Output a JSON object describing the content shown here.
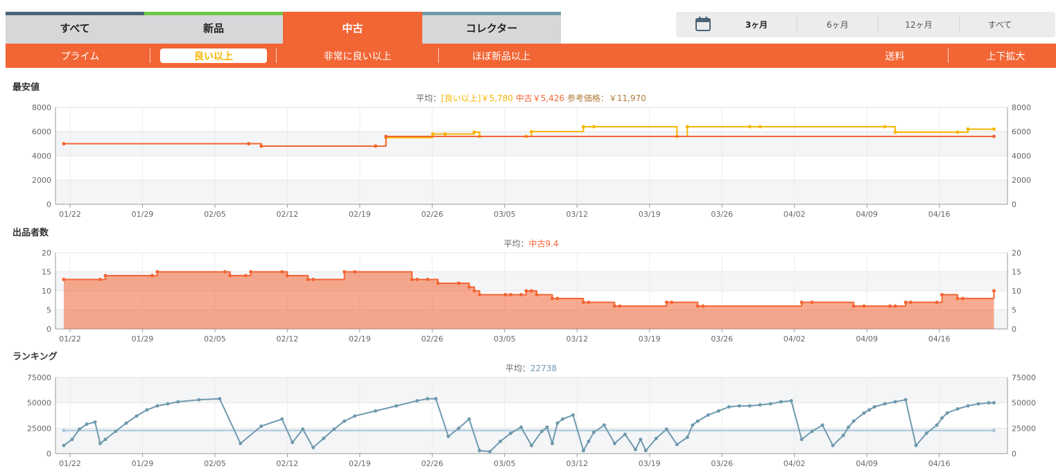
{
  "tabs": [
    {
      "label": "すべて",
      "stripe": "#4a6478",
      "active": false
    },
    {
      "label": "新品",
      "stripe": "#6dc84a",
      "active": false
    },
    {
      "label": "中古",
      "stripe": "#f26534",
      "active": true
    },
    {
      "label": "コレクター",
      "stripe": "#6d9bab",
      "active": false
    }
  ],
  "range": {
    "icon": "calendar-icon",
    "items": [
      {
        "label": "3ヶ月",
        "active": true
      },
      {
        "label": "6ヶ月",
        "active": false
      },
      {
        "label": "12ヶ月",
        "active": false
      },
      {
        "label": "すべて",
        "active": false
      }
    ]
  },
  "filters": {
    "items": [
      {
        "label": "プライム",
        "active": false
      },
      {
        "label": "良い以上",
        "active": true
      },
      {
        "label": "非常に良い以上",
        "active": false
      },
      {
        "label": "ほぼ新品以上",
        "active": false
      }
    ],
    "shipping_label": "送料",
    "zoom_label": "上下拡大"
  },
  "colors": {
    "accent": "#f26534",
    "good": "#f7b500",
    "rank": "#6e99ad",
    "rank_avg": "#a7c6da"
  },
  "chart_data": [
    {
      "type": "line",
      "title": "最安値",
      "subtitle": {
        "prefix": "平均：",
        "good_label": "[良い以上]￥5,780",
        "used_label": "中古￥5,426",
        "ref_label": "参考価格：￥11,970"
      },
      "x_ticks": [
        "01/22",
        "01/29",
        "02/05",
        "02/12",
        "02/19",
        "02/26",
        "03/05",
        "03/12",
        "03/19",
        "03/26",
        "04/02",
        "04/09",
        "04/16"
      ],
      "x_range": [
        0,
        90
      ],
      "ylim": [
        0,
        8000
      ],
      "y_ticks": [
        0,
        2000,
        4000,
        6000,
        8000
      ],
      "grid": true,
      "series": [
        {
          "name": "良い以上",
          "color": "#f7b500",
          "x": [
            0,
            17.8,
            19,
            30,
            31,
            35.5,
            36.7,
            39.5,
            40,
            44.5,
            45,
            50,
            51,
            59,
            60,
            66,
            67,
            79,
            80,
            86,
            87,
            89.5
          ],
          "y": [
            5000,
            5000,
            4800,
            4800,
            5500,
            5800,
            5800,
            5950,
            5600,
            5600,
            6000,
            6400,
            6400,
            5600,
            6400,
            6400,
            6400,
            6400,
            5950,
            5950,
            6200,
            6200
          ]
        },
        {
          "name": "中古",
          "color": "#f26534",
          "x": [
            0,
            17.8,
            19,
            30,
            31,
            89.5
          ],
          "y": [
            5000,
            5000,
            4800,
            4800,
            5600,
            5600
          ]
        }
      ]
    },
    {
      "type": "area",
      "title": "出品者数",
      "subtitle": {
        "prefix": "平均：",
        "used_label": "中古9.4"
      },
      "x_ticks": [
        "01/22",
        "01/29",
        "02/05",
        "02/12",
        "02/19",
        "02/26",
        "03/05",
        "03/12",
        "03/19",
        "03/26",
        "04/02",
        "04/09",
        "04/16"
      ],
      "x_range": [
        0,
        90
      ],
      "ylim": [
        0,
        20
      ],
      "y_ticks": [
        0,
        5,
        10,
        15,
        20
      ],
      "grid": true,
      "series": [
        {
          "name": "中古",
          "color": "#f26534",
          "x": [
            0,
            3.5,
            4,
            8.5,
            9,
            15.5,
            16,
            17.5,
            18,
            21,
            21.5,
            23.5,
            24,
            27,
            28,
            33.5,
            34,
            35,
            36,
            38,
            39,
            39.5,
            40,
            42.5,
            43,
            44,
            44.5,
            45,
            45.5,
            47,
            47.5,
            50,
            50.5,
            53,
            53.5,
            58,
            58.5,
            61,
            61.5,
            71,
            72,
            76,
            77,
            79.5,
            80,
            81,
            81.5,
            84,
            84.5,
            86,
            86.5,
            89.5
          ],
          "y": [
            13,
            13,
            14,
            14,
            15,
            15,
            14,
            14,
            15,
            15,
            14,
            13,
            13,
            15,
            15,
            13,
            13,
            13,
            12,
            12,
            11,
            10,
            9,
            9,
            9,
            9,
            10,
            10,
            9,
            8,
            8,
            7,
            7,
            6,
            6,
            7,
            7,
            6,
            6,
            7,
            7,
            6,
            6,
            6,
            6,
            7,
            7,
            7,
            9,
            8,
            8,
            10
          ]
        }
      ]
    },
    {
      "type": "line",
      "title": "ランキング",
      "subtitle": {
        "prefix": "平均：",
        "value_label": "22738"
      },
      "x_ticks": [
        "01/22",
        "01/29",
        "02/05",
        "02/12",
        "02/19",
        "02/26",
        "03/05",
        "03/12",
        "03/19",
        "03/26",
        "04/02",
        "04/09",
        "04/16"
      ],
      "x_range": [
        0,
        90
      ],
      "ylim": [
        0,
        75000
      ],
      "y_ticks": [
        0,
        25000,
        50000,
        75000
      ],
      "grid": true,
      "series": [
        {
          "name": "ランキング",
          "color": "#6e99ad",
          "x": [
            0,
            0.8,
            1.5,
            2.2,
            3,
            3.5,
            4,
            5,
            6,
            7,
            8,
            9,
            10,
            11,
            13,
            15,
            17,
            19,
            21,
            22,
            23,
            24,
            25,
            26,
            27,
            28,
            30,
            32,
            34,
            35,
            35.8,
            37,
            38,
            39,
            40,
            41,
            42,
            43,
            44,
            45,
            46,
            46.5,
            47,
            47.5,
            48,
            49,
            50,
            50.5,
            51,
            52,
            53,
            54,
            55,
            55.5,
            56,
            57,
            58,
            59,
            60,
            60.5,
            61,
            62,
            63,
            64,
            65,
            66,
            67,
            68,
            69,
            70,
            71,
            72,
            73,
            74,
            75,
            75.5,
            76,
            77,
            77.5,
            78,
            79,
            80,
            81,
            82,
            83,
            84,
            84.5,
            85,
            86,
            87,
            88,
            89,
            89.5
          ],
          "y": [
            8000,
            14000,
            24000,
            29000,
            31000,
            10000,
            14000,
            22000,
            30000,
            37000,
            43000,
            47000,
            49000,
            51000,
            53000,
            54000,
            10000,
            27000,
            34000,
            11000,
            24000,
            6000,
            15000,
            24000,
            32000,
            37000,
            42000,
            47000,
            52000,
            54000,
            54000,
            17000,
            25000,
            34000,
            3000,
            2000,
            12000,
            20000,
            26000,
            8000,
            22000,
            26000,
            10000,
            30000,
            34000,
            38000,
            3000,
            12000,
            21000,
            28000,
            10000,
            19000,
            4000,
            14000,
            3000,
            15000,
            24000,
            9000,
            16000,
            28000,
            32000,
            38000,
            42000,
            46000,
            47000,
            47000,
            48000,
            49000,
            51000,
            52000,
            14000,
            22000,
            28000,
            8000,
            18000,
            26000,
            32000,
            40000,
            43000,
            46000,
            49000,
            51000,
            53000,
            8000,
            20000,
            28000,
            35000,
            40000,
            44000,
            47000,
            49000,
            50000,
            50000
          ]
        }
      ],
      "average": 22738
    }
  ]
}
